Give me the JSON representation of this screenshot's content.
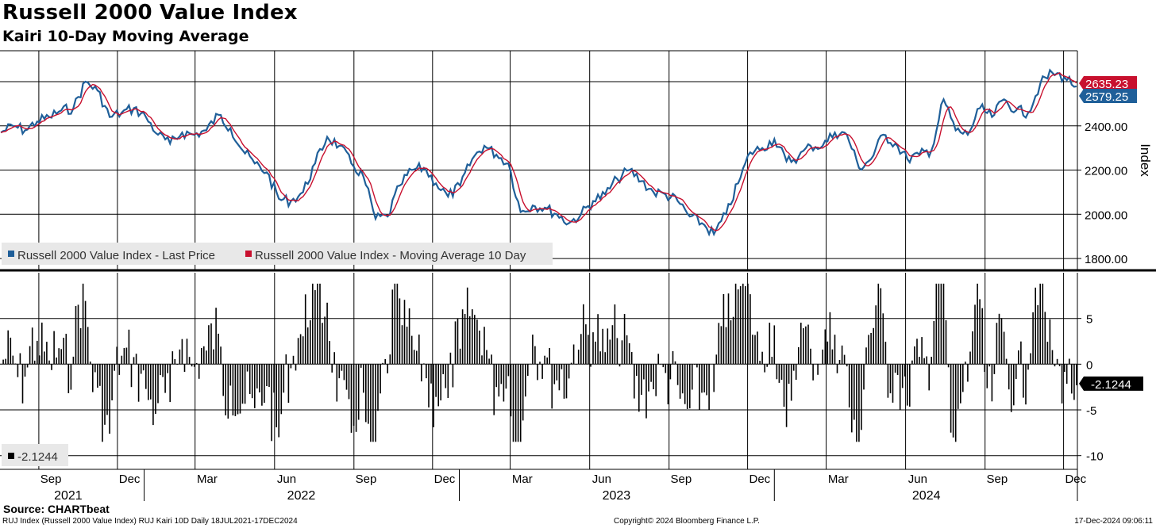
{
  "chart_data": [
    {
      "type": "line",
      "title": "Russell 2000 Value Index",
      "subtitle": "Kairi 10-Day Moving Average",
      "ylabel": "Index",
      "ylim": [
        1750,
        2740
      ],
      "yticks": [
        "1800.00",
        "2000.00",
        "2200.00",
        "2400.00"
      ],
      "grid": true,
      "legend_position": "bottom-left",
      "x_range": [
        "2021-07-18",
        "2024-12-17"
      ],
      "series": [
        {
          "name": "Russell 2000 Value Index - Last Price",
          "color": "#1f5f99",
          "last_value": "2579.25",
          "dates": [
            "2021-07-19",
            "2021-08-02",
            "2021-08-16",
            "2021-08-30",
            "2021-09-13",
            "2021-09-27",
            "2021-10-11",
            "2021-10-25",
            "2021-11-08",
            "2021-11-22",
            "2021-12-06",
            "2021-12-20",
            "2022-01-03",
            "2022-01-17",
            "2022-01-31",
            "2022-02-14",
            "2022-02-28",
            "2022-03-14",
            "2022-03-28",
            "2022-04-11",
            "2022-04-25",
            "2022-05-09",
            "2022-05-23",
            "2022-06-06",
            "2022-06-20",
            "2022-07-04",
            "2022-07-18",
            "2022-08-01",
            "2022-08-15",
            "2022-08-29",
            "2022-09-12",
            "2022-09-26",
            "2022-10-10",
            "2022-10-24",
            "2022-11-07",
            "2022-11-21",
            "2022-12-05",
            "2022-12-19",
            "2023-01-02",
            "2023-01-16",
            "2023-01-30",
            "2023-02-13",
            "2023-02-27",
            "2023-03-13",
            "2023-03-27",
            "2023-04-10",
            "2023-04-24",
            "2023-05-08",
            "2023-05-22",
            "2023-06-05",
            "2023-06-19",
            "2023-07-03",
            "2023-07-17",
            "2023-07-31",
            "2023-08-14",
            "2023-08-28",
            "2023-09-11",
            "2023-09-25",
            "2023-10-09",
            "2023-10-23",
            "2023-11-06",
            "2023-11-20",
            "2023-12-04",
            "2023-12-18",
            "2024-01-01",
            "2024-01-15",
            "2024-01-29",
            "2024-02-12",
            "2024-02-26",
            "2024-03-11",
            "2024-03-25",
            "2024-04-08",
            "2024-04-22",
            "2024-05-06",
            "2024-05-20",
            "2024-06-03",
            "2024-06-17",
            "2024-07-01",
            "2024-07-15",
            "2024-07-29",
            "2024-08-12",
            "2024-08-26",
            "2024-09-09",
            "2024-09-23",
            "2024-10-07",
            "2024-10-21",
            "2024-11-04",
            "2024-11-18",
            "2024-12-02",
            "2024-12-16"
          ],
          "values": [
            2370,
            2400,
            2380,
            2420,
            2440,
            2470,
            2480,
            2600,
            2560,
            2440,
            2460,
            2480,
            2440,
            2360,
            2320,
            2370,
            2360,
            2380,
            2450,
            2390,
            2290,
            2230,
            2190,
            2070,
            2060,
            2100,
            2230,
            2350,
            2310,
            2230,
            2170,
            1980,
            1990,
            2130,
            2200,
            2210,
            2140,
            2080,
            2130,
            2250,
            2310,
            2270,
            2230,
            2010,
            2040,
            2030,
            2000,
            1960,
            2000,
            2060,
            2090,
            2160,
            2200,
            2150,
            2100,
            2090,
            2060,
            1990,
            1960,
            1910,
            2000,
            2140,
            2280,
            2300,
            2340,
            2240,
            2260,
            2310,
            2310,
            2370,
            2360,
            2210,
            2250,
            2360,
            2320,
            2250,
            2270,
            2290,
            2520,
            2380,
            2360,
            2480,
            2440,
            2520,
            2470,
            2460,
            2590,
            2640,
            2620,
            2579
          ]
        },
        {
          "name": "Russell 2000 Value Index - Moving Average 10 Day",
          "color": "#c8102e",
          "last_value": "2635.23"
        }
      ]
    },
    {
      "type": "bar",
      "name": "RUJ Kairi 10D",
      "ylim": [
        -11.5,
        10
      ],
      "yticks": [
        "5",
        "0",
        "-5",
        "-10"
      ],
      "legend_value": "-2.1244",
      "last_value": "-2.1244"
    }
  ],
  "xaxis": {
    "months": [
      "Sep",
      "Dec",
      "Mar",
      "Jun",
      "Sep",
      "Dec",
      "Mar",
      "Jun",
      "Sep",
      "Dec",
      "Mar",
      "Jun",
      "Sep",
      "Dec"
    ],
    "years": [
      "2021",
      "2022",
      "2023",
      "2024"
    ]
  },
  "footer": {
    "source": "Source: CHARTbeat",
    "left": "RUJ Index (Russell 2000 Value Index) RUJ Kairi 10D  Daily 18JUL2021-17DEC2024",
    "center": "Copyright© 2024 Bloomberg Finance L.P.",
    "right": "17-Dec-2024 09:06:11"
  }
}
